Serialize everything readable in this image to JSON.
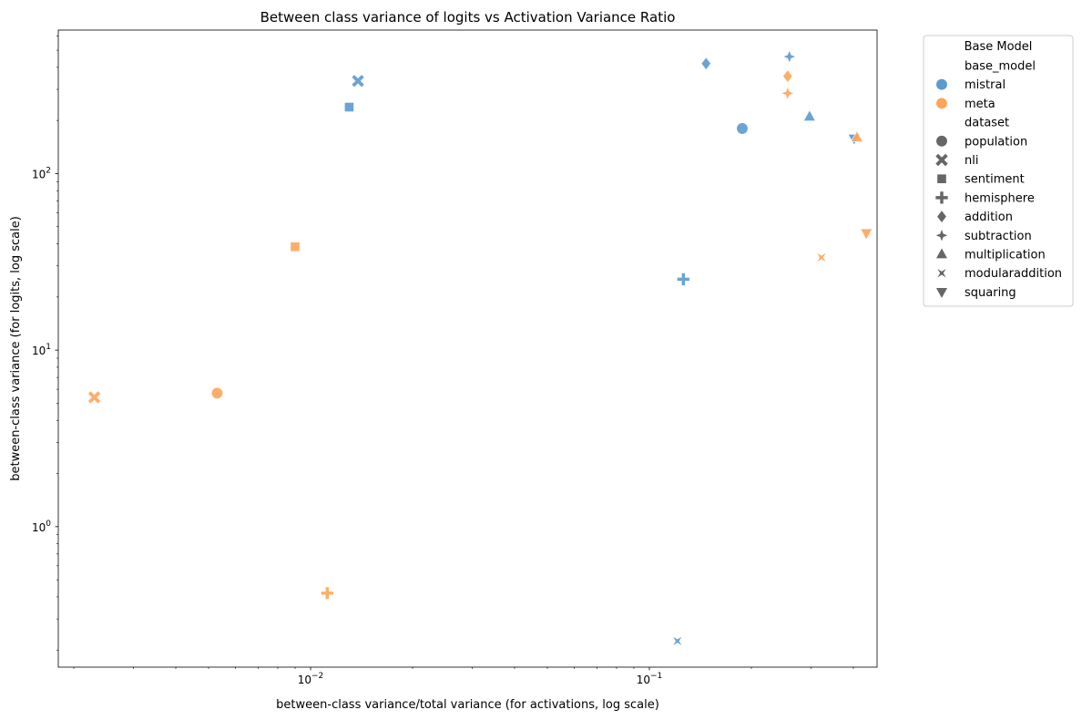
{
  "chart_data": {
    "type": "scatter",
    "title": "Between class variance of logits vs Activation Variance Ratio",
    "xlabel": "between-class variance/total variance (for activations, log scale)",
    "ylabel": "between-class variance (for logits, log scale)",
    "xscale": "log",
    "yscale": "log",
    "xlim": [
      0.0018,
      0.47
    ],
    "ylim": [
      0.16,
      650
    ],
    "x_ticks": [
      {
        "value": 0.01,
        "base": "10",
        "exp": "−2"
      },
      {
        "value": 0.1,
        "base": "10",
        "exp": "−1"
      }
    ],
    "y_ticks": [
      {
        "value": 1,
        "base": "10",
        "exp": "0"
      },
      {
        "value": 10,
        "base": "10",
        "exp": "1"
      },
      {
        "value": 100,
        "base": "10",
        "exp": "2"
      }
    ],
    "grid": false,
    "legend": {
      "title": "Base Model",
      "placement": "outside-right",
      "hue_title": "base_model",
      "style_title": "dataset",
      "hue_entries": [
        {
          "name": "mistral",
          "color": "#5b9bd0"
        },
        {
          "name": "meta",
          "color": "#fda65a"
        }
      ],
      "style_entries": [
        {
          "name": "population",
          "marker": "circle"
        },
        {
          "name": "nli",
          "marker": "x"
        },
        {
          "name": "sentiment",
          "marker": "square"
        },
        {
          "name": "hemisphere",
          "marker": "plus"
        },
        {
          "name": "addition",
          "marker": "diamond"
        },
        {
          "name": "subtraction",
          "marker": "star4"
        },
        {
          "name": "multiplication",
          "marker": "triangle-up"
        },
        {
          "name": "modularaddition",
          "marker": "bowtie"
        },
        {
          "name": "squaring",
          "marker": "triangle-down"
        }
      ],
      "style_color": "#666666"
    },
    "series": [
      {
        "name": "mistral",
        "color": "#5b9bd0",
        "points": [
          {
            "dataset": "population",
            "x": 0.188,
            "y": 180
          },
          {
            "dataset": "nli",
            "x": 0.0138,
            "y": 335
          },
          {
            "dataset": "sentiment",
            "x": 0.013,
            "y": 238
          },
          {
            "dataset": "hemisphere",
            "x": 0.126,
            "y": 25.2
          },
          {
            "dataset": "addition",
            "x": 0.147,
            "y": 420
          },
          {
            "dataset": "subtraction",
            "x": 0.259,
            "y": 460
          },
          {
            "dataset": "multiplication",
            "x": 0.297,
            "y": 210
          },
          {
            "dataset": "modularaddition",
            "x": 0.121,
            "y": 0.225
          },
          {
            "dataset": "squaring",
            "x": 0.402,
            "y": 158
          }
        ]
      },
      {
        "name": "meta",
        "color": "#fda65a",
        "points": [
          {
            "dataset": "population",
            "x": 0.0053,
            "y": 5.7
          },
          {
            "dataset": "nli",
            "x": 0.0023,
            "y": 5.4
          },
          {
            "dataset": "sentiment",
            "x": 0.009,
            "y": 38.5
          },
          {
            "dataset": "hemisphere",
            "x": 0.0112,
            "y": 0.42
          },
          {
            "dataset": "addition",
            "x": 0.256,
            "y": 356
          },
          {
            "dataset": "subtraction",
            "x": 0.256,
            "y": 285
          },
          {
            "dataset": "multiplication",
            "x": 0.41,
            "y": 160
          },
          {
            "dataset": "modularaddition",
            "x": 0.322,
            "y": 33.5
          },
          {
            "dataset": "squaring",
            "x": 0.437,
            "y": 46
          }
        ]
      }
    ]
  }
}
